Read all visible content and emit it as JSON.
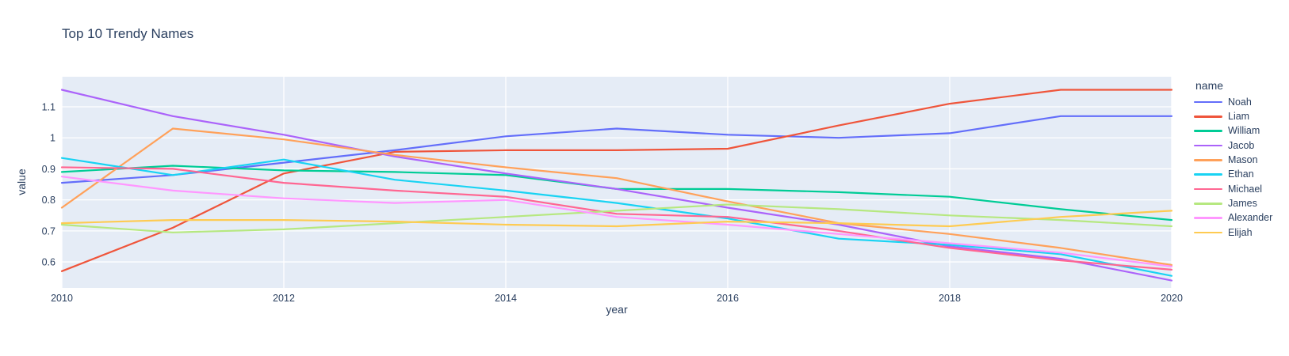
{
  "chart_data": {
    "type": "line",
    "title": "Top 10 Trendy Names",
    "xlabel": "year",
    "ylabel": "value",
    "legend_title": "name",
    "x": [
      2010,
      2011,
      2012,
      2013,
      2014,
      2015,
      2016,
      2017,
      2018,
      2019,
      2020
    ],
    "x_ticks": [
      2010,
      2012,
      2014,
      2016,
      2018,
      2020
    ],
    "y_ticks": [
      0.6,
      0.7,
      0.8,
      0.9,
      1,
      1.1
    ],
    "y_tick_labels": [
      "0.6",
      "0.7",
      "0.8",
      "0.9",
      "1",
      "1.1"
    ],
    "x_range": [
      2010,
      2020
    ],
    "y_range": [
      0.516,
      1.197
    ],
    "grid": true,
    "legend_position": "right",
    "plot_bg": "#E5ECF6",
    "grid_color": "#FFFFFF",
    "text_color": "#2A3F5F",
    "series": [
      {
        "name": "Noah",
        "color": "#636EFA",
        "values": [
          0.855,
          0.88,
          0.92,
          0.96,
          1.005,
          1.03,
          1.01,
          1.0,
          1.015,
          1.07,
          1.07
        ]
      },
      {
        "name": "Liam",
        "color": "#EF553B",
        "values": [
          0.57,
          0.71,
          0.885,
          0.955,
          0.96,
          0.96,
          0.965,
          1.04,
          1.11,
          1.155,
          1.155
        ]
      },
      {
        "name": "William",
        "color": "#00CC96",
        "values": [
          0.89,
          0.91,
          0.895,
          0.89,
          0.88,
          0.835,
          0.835,
          0.825,
          0.81,
          0.77,
          0.735
        ]
      },
      {
        "name": "Jacob",
        "color": "#AB63FA",
        "values": [
          1.155,
          1.07,
          1.01,
          0.94,
          0.885,
          0.835,
          0.775,
          0.72,
          0.65,
          0.61,
          0.54
        ]
      },
      {
        "name": "Mason",
        "color": "#FFA15A",
        "values": [
          0.775,
          1.03,
          0.995,
          0.945,
          0.905,
          0.87,
          0.795,
          0.725,
          0.69,
          0.645,
          0.59
        ]
      },
      {
        "name": "Ethan",
        "color": "#19D3F3",
        "values": [
          0.935,
          0.88,
          0.93,
          0.865,
          0.83,
          0.79,
          0.74,
          0.675,
          0.655,
          0.625,
          0.555
        ]
      },
      {
        "name": "Michael",
        "color": "#FF6692",
        "values": [
          0.905,
          0.9,
          0.855,
          0.83,
          0.81,
          0.755,
          0.745,
          0.7,
          0.645,
          0.605,
          0.575
        ]
      },
      {
        "name": "James",
        "color": "#B6E880",
        "values": [
          0.72,
          0.695,
          0.705,
          0.725,
          0.745,
          0.765,
          0.785,
          0.77,
          0.75,
          0.735,
          0.715
        ]
      },
      {
        "name": "Alexander",
        "color": "#FF97FF",
        "values": [
          0.875,
          0.83,
          0.805,
          0.79,
          0.8,
          0.745,
          0.72,
          0.69,
          0.66,
          0.63,
          0.585
        ]
      },
      {
        "name": "Elijah",
        "color": "#FECB52",
        "values": [
          0.725,
          0.735,
          0.735,
          0.73,
          0.72,
          0.715,
          0.73,
          0.725,
          0.715,
          0.745,
          0.765
        ]
      }
    ]
  }
}
